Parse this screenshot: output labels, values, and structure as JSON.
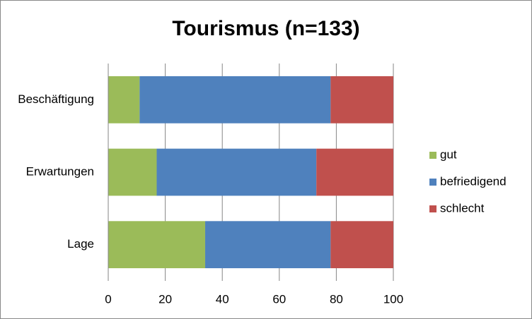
{
  "chart_data": {
    "type": "stacked-bar-horizontal",
    "title": "Tourismus (n=133)",
    "categories": [
      "Beschäftigung",
      "Erwartungen",
      "Lage"
    ],
    "series": [
      {
        "name": "gut",
        "color": "#9bbb59",
        "values": [
          11,
          17,
          34
        ]
      },
      {
        "name": "befriedigend",
        "color": "#4f81bd",
        "values": [
          67,
          56,
          44
        ]
      },
      {
        "name": "schlecht",
        "color": "#c0504d",
        "values": [
          22,
          27,
          22
        ]
      }
    ],
    "xlim": [
      0,
      100
    ],
    "xticks": [
      0,
      20,
      40,
      60,
      80,
      100
    ],
    "grid": true,
    "legend": "right"
  }
}
